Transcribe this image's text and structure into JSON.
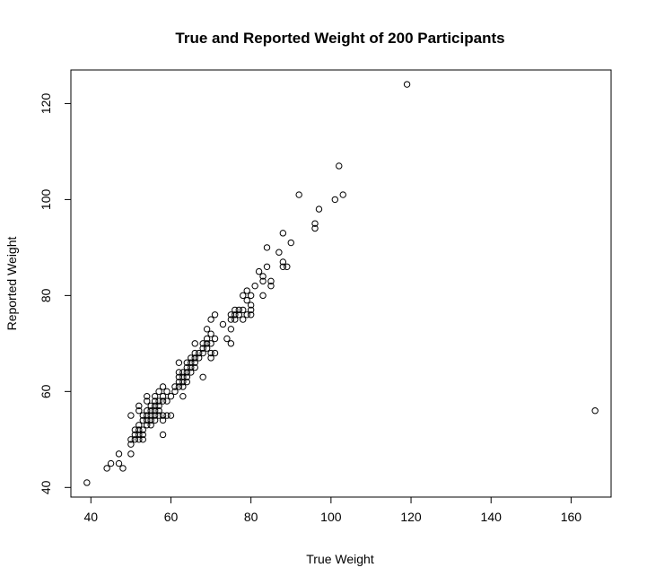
{
  "chart_data": {
    "type": "scatter",
    "title": "True and Reported Weight of 200 Participants",
    "xlabel": "True Weight",
    "ylabel": "Reported Weight",
    "xlim": [
      35,
      170
    ],
    "ylim": [
      38,
      127
    ],
    "x_ticks": [
      40,
      60,
      80,
      100,
      120,
      140,
      160
    ],
    "y_ticks": [
      40,
      60,
      80,
      100,
      120
    ],
    "grid": false,
    "marker": "open-circle",
    "colors": {
      "points": "#000000",
      "axes": "#000000",
      "background": "#ffffff"
    },
    "points": [
      [
        39,
        41
      ],
      [
        44,
        44
      ],
      [
        45,
        45
      ],
      [
        47,
        45
      ],
      [
        47,
        47
      ],
      [
        48,
        44
      ],
      [
        50,
        47
      ],
      [
        50,
        49
      ],
      [
        50,
        50
      ],
      [
        50,
        55
      ],
      [
        51,
        50
      ],
      [
        51,
        51
      ],
      [
        51,
        52
      ],
      [
        52,
        50
      ],
      [
        52,
        51
      ],
      [
        52,
        52
      ],
      [
        52,
        53
      ],
      [
        52,
        56
      ],
      [
        52,
        57
      ],
      [
        53,
        50
      ],
      [
        53,
        51
      ],
      [
        53,
        52
      ],
      [
        53,
        54
      ],
      [
        53,
        55
      ],
      [
        54,
        53
      ],
      [
        54,
        54
      ],
      [
        54,
        55
      ],
      [
        54,
        56
      ],
      [
        54,
        58
      ],
      [
        54,
        59
      ],
      [
        55,
        53
      ],
      [
        55,
        54
      ],
      [
        55,
        55
      ],
      [
        55,
        56
      ],
      [
        55,
        57
      ],
      [
        56,
        54
      ],
      [
        56,
        55
      ],
      [
        56,
        56
      ],
      [
        56,
        57
      ],
      [
        56,
        58
      ],
      [
        56,
        59
      ],
      [
        57,
        55
      ],
      [
        57,
        56
      ],
      [
        57,
        57
      ],
      [
        57,
        58
      ],
      [
        57,
        60
      ],
      [
        58,
        51
      ],
      [
        58,
        54
      ],
      [
        58,
        55
      ],
      [
        58,
        58
      ],
      [
        58,
        59
      ],
      [
        58,
        61
      ],
      [
        59,
        55
      ],
      [
        59,
        58
      ],
      [
        59,
        60
      ],
      [
        60,
        55
      ],
      [
        60,
        59
      ],
      [
        61,
        60
      ],
      [
        61,
        61
      ],
      [
        62,
        61
      ],
      [
        62,
        62
      ],
      [
        62,
        63
      ],
      [
        62,
        64
      ],
      [
        62,
        66
      ],
      [
        63,
        59
      ],
      [
        63,
        61
      ],
      [
        63,
        62
      ],
      [
        63,
        63
      ],
      [
        63,
        64
      ],
      [
        64,
        62
      ],
      [
        64,
        63
      ],
      [
        64,
        64
      ],
      [
        64,
        65
      ],
      [
        64,
        66
      ],
      [
        65,
        64
      ],
      [
        65,
        65
      ],
      [
        65,
        66
      ],
      [
        65,
        67
      ],
      [
        66,
        65
      ],
      [
        66,
        66
      ],
      [
        66,
        67
      ],
      [
        66,
        68
      ],
      [
        66,
        70
      ],
      [
        67,
        67
      ],
      [
        67,
        68
      ],
      [
        68,
        63
      ],
      [
        68,
        68
      ],
      [
        68,
        69
      ],
      [
        68,
        70
      ],
      [
        69,
        69
      ],
      [
        69,
        70
      ],
      [
        69,
        71
      ],
      [
        69,
        73
      ],
      [
        70,
        67
      ],
      [
        70,
        68
      ],
      [
        70,
        70
      ],
      [
        70,
        72
      ],
      [
        70,
        75
      ],
      [
        71,
        68
      ],
      [
        71,
        71
      ],
      [
        71,
        76
      ],
      [
        73,
        74
      ],
      [
        74,
        71
      ],
      [
        75,
        70
      ],
      [
        75,
        73
      ],
      [
        75,
        75
      ],
      [
        75,
        76
      ],
      [
        76,
        75
      ],
      [
        76,
        76
      ],
      [
        76,
        77
      ],
      [
        77,
        76
      ],
      [
        77,
        77
      ],
      [
        78,
        75
      ],
      [
        78,
        77
      ],
      [
        78,
        80
      ],
      [
        79,
        76
      ],
      [
        79,
        79
      ],
      [
        79,
        81
      ],
      [
        80,
        76
      ],
      [
        80,
        77
      ],
      [
        80,
        78
      ],
      [
        80,
        80
      ],
      [
        81,
        82
      ],
      [
        82,
        85
      ],
      [
        83,
        80
      ],
      [
        83,
        83
      ],
      [
        83,
        84
      ],
      [
        84,
        86
      ],
      [
        84,
        90
      ],
      [
        85,
        82
      ],
      [
        85,
        83
      ],
      [
        87,
        89
      ],
      [
        88,
        86
      ],
      [
        88,
        87
      ],
      [
        88,
        93
      ],
      [
        89,
        86
      ],
      [
        90,
        91
      ],
      [
        92,
        101
      ],
      [
        96,
        94
      ],
      [
        96,
        95
      ],
      [
        97,
        98
      ],
      [
        101,
        100
      ],
      [
        102,
        107
      ],
      [
        103,
        101
      ],
      [
        119,
        124
      ],
      [
        166,
        56
      ]
    ]
  }
}
